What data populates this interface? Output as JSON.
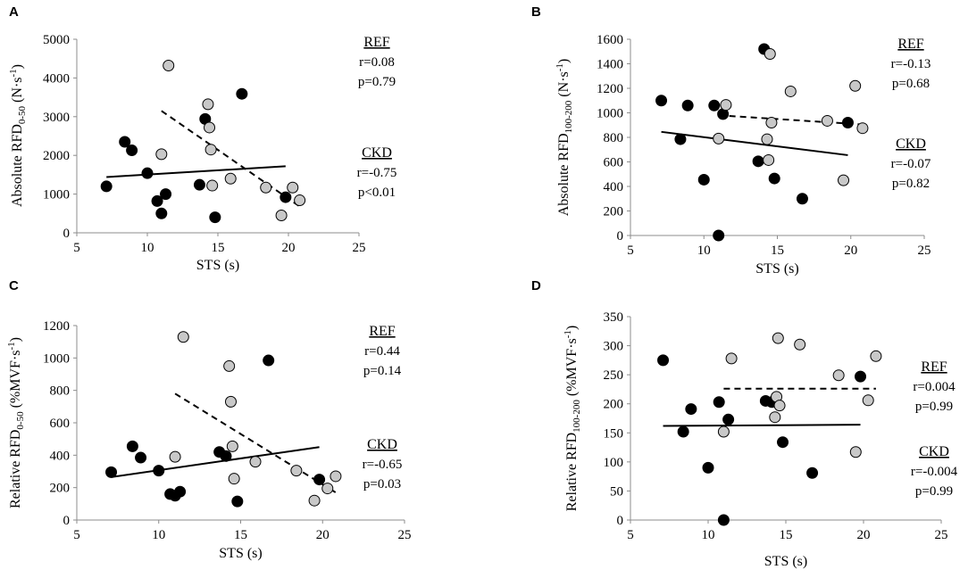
{
  "colors": {
    "ckd_point": "#000000",
    "ref_point": "#c8c8c8",
    "axis": "#8c8c8c",
    "text": "#000000"
  },
  "legend_text": {
    "ref_label": "REF",
    "ckd_label": "CKD"
  },
  "chart_data": [
    {
      "type": "scatter",
      "panel_label": "A",
      "xlabel": "STS (s)",
      "ylabel": {
        "prefix": "Absolute RFD",
        "sub": "0-50",
        "suffix": " (N·s",
        "sup": "-1",
        "end": ")"
      },
      "xlim": [
        5,
        25
      ],
      "xticks": [
        5,
        10,
        15,
        20,
        25
      ],
      "ylim": [
        0,
        5000
      ],
      "yticks": [
        0,
        1000,
        2000,
        3000,
        4000,
        5000
      ],
      "series": [
        {
          "name": "CKD",
          "marker": "filled-black",
          "x": [
            7.1,
            8.4,
            8.9,
            10.0,
            10.7,
            11.0,
            11.3,
            13.7,
            14.1,
            14.8,
            16.7,
            19.8
          ],
          "y": [
            1200,
            2350,
            2130,
            1540,
            820,
            500,
            1000,
            1240,
            2940,
            400,
            3590,
            920
          ]
        },
        {
          "name": "REF",
          "marker": "filled-grey",
          "x": [
            11.0,
            11.5,
            14.3,
            14.4,
            14.5,
            14.6,
            15.9,
            18.4,
            19.5,
            20.3,
            20.8
          ],
          "y": [
            2030,
            4320,
            3320,
            2720,
            2150,
            1220,
            1400,
            1170,
            450,
            1170,
            840
          ]
        }
      ],
      "fit_lines": [
        {
          "series": "CKD",
          "style": "solid",
          "x": [
            7.1,
            19.8
          ],
          "y": [
            1440,
            1720
          ]
        },
        {
          "series": "REF",
          "style": "dashed",
          "x": [
            11.0,
            20.8
          ],
          "y": [
            3150,
            680
          ]
        }
      ],
      "annotations": [
        {
          "group": "REF",
          "lines": [
            "r=0.08",
            "p=0.79"
          ]
        },
        {
          "group": "CKD",
          "lines": [
            "r=-0.75",
            "p<0.01"
          ]
        }
      ]
    },
    {
      "type": "scatter",
      "panel_label": "B",
      "xlabel": "STS (s)",
      "ylabel": {
        "prefix": "Absolute RFD",
        "sub": "100-200",
        "suffix": " (N·s",
        "sup": "-1",
        "end": ")"
      },
      "xlim": [
        5,
        25
      ],
      "xticks": [
        5,
        10,
        15,
        20,
        25
      ],
      "ylim": [
        0,
        1600
      ],
      "yticks": [
        0,
        200,
        400,
        600,
        800,
        1000,
        1200,
        1400,
        1600
      ],
      "series": [
        {
          "name": "CKD",
          "marker": "filled-black",
          "x": [
            7.1,
            8.4,
            8.9,
            10.0,
            10.7,
            11.0,
            11.3,
            13.7,
            14.1,
            14.8,
            16.7,
            19.8
          ],
          "y": [
            1100,
            785,
            1060,
            455,
            1060,
            0,
            990,
            605,
            1520,
            465,
            300,
            920
          ]
        },
        {
          "name": "REF",
          "marker": "filled-grey",
          "x": [
            11.0,
            11.5,
            14.3,
            14.4,
            14.5,
            14.6,
            15.9,
            18.4,
            19.5,
            20.3,
            20.8
          ],
          "y": [
            790,
            1065,
            785,
            615,
            1480,
            920,
            1175,
            935,
            450,
            1220,
            875
          ]
        }
      ],
      "fit_lines": [
        {
          "series": "CKD",
          "style": "solid",
          "x": [
            7.1,
            19.8
          ],
          "y": [
            845,
            655
          ]
        },
        {
          "series": "REF",
          "style": "dashed",
          "x": [
            11.0,
            20.8
          ],
          "y": [
            980,
            905
          ]
        }
      ],
      "annotations": [
        {
          "group": "REF",
          "lines": [
            "r=-0.13",
            "p=0.68"
          ]
        },
        {
          "group": "CKD",
          "lines": [
            "r=-0.07",
            "p=0.82"
          ]
        }
      ]
    },
    {
      "type": "scatter",
      "panel_label": "C",
      "xlabel": "STS (s)",
      "ylabel": {
        "prefix": "Relative RFD",
        "sub": "0-50",
        "suffix": " (%MVF·s",
        "sup": "-1",
        "end": ")"
      },
      "xlim": [
        5,
        25
      ],
      "xticks": [
        5,
        10,
        15,
        20,
        25
      ],
      "ylim": [
        0,
        1200
      ],
      "yticks": [
        0,
        200,
        400,
        600,
        800,
        1000,
        1200
      ],
      "series": [
        {
          "name": "CKD",
          "marker": "filled-black",
          "x": [
            7.1,
            8.4,
            8.9,
            10.0,
            10.7,
            11.0,
            11.3,
            13.7,
            14.1,
            14.8,
            16.7,
            19.8
          ],
          "y": [
            295,
            455,
            385,
            305,
            160,
            150,
            175,
            420,
            395,
            115,
            985,
            250
          ]
        },
        {
          "name": "REF",
          "marker": "filled-grey",
          "x": [
            11.0,
            11.5,
            14.3,
            14.4,
            14.5,
            14.6,
            15.9,
            18.4,
            19.5,
            20.3,
            20.8
          ],
          "y": [
            390,
            1130,
            950,
            730,
            455,
            255,
            360,
            305,
            120,
            195,
            270
          ]
        }
      ],
      "fit_lines": [
        {
          "series": "CKD",
          "style": "solid",
          "x": [
            7.1,
            19.8
          ],
          "y": [
            265,
            450
          ]
        },
        {
          "series": "REF",
          "style": "dashed",
          "x": [
            11.0,
            20.8
          ],
          "y": [
            780,
            170
          ]
        }
      ],
      "annotations": [
        {
          "group": "REF",
          "lines": [
            "r=0.44",
            "p=0.14"
          ]
        },
        {
          "group": "CKD",
          "lines": [
            "r=-0.65",
            "p=0.03"
          ]
        }
      ]
    },
    {
      "type": "scatter",
      "panel_label": "D",
      "xlabel": "STS (s)",
      "ylabel": {
        "prefix": "Relative RFD",
        "sub": "100-200",
        "suffix": " (%MVF·s",
        "sup": "-1",
        "end": ")"
      },
      "xlim": [
        5,
        25
      ],
      "xticks": [
        5,
        10,
        15,
        20,
        25
      ],
      "ylim": [
        0,
        350
      ],
      "yticks": [
        0,
        50,
        100,
        150,
        200,
        250,
        300,
        350
      ],
      "series": [
        {
          "name": "CKD",
          "marker": "filled-black",
          "x": [
            7.1,
            8.4,
            8.9,
            10.0,
            10.7,
            11.0,
            11.3,
            13.7,
            14.1,
            14.8,
            16.7,
            19.8
          ],
          "y": [
            275,
            152,
            191,
            90,
            203,
            0,
            173,
            205,
            203,
            134,
            81,
            247
          ]
        },
        {
          "name": "REF",
          "marker": "filled-grey",
          "x": [
            11.0,
            11.5,
            14.3,
            14.4,
            14.5,
            14.6,
            15.9,
            18.4,
            19.5,
            20.3,
            20.8
          ],
          "y": [
            152,
            278,
            177,
            212,
            313,
            197,
            302,
            249,
            117,
            206,
            282
          ]
        }
      ],
      "fit_lines": [
        {
          "series": "CKD",
          "style": "solid",
          "x": [
            7.1,
            19.8
          ],
          "y": [
            162,
            164
          ]
        },
        {
          "series": "REF",
          "style": "dashed",
          "x": [
            11.0,
            20.8
          ],
          "y": [
            226,
            226
          ]
        }
      ],
      "annotations": [
        {
          "group": "REF",
          "lines": [
            "r=0.004",
            "p=0.99"
          ]
        },
        {
          "group": "CKD",
          "lines": [
            "r=-0.004",
            "p=0.99"
          ]
        }
      ]
    }
  ]
}
